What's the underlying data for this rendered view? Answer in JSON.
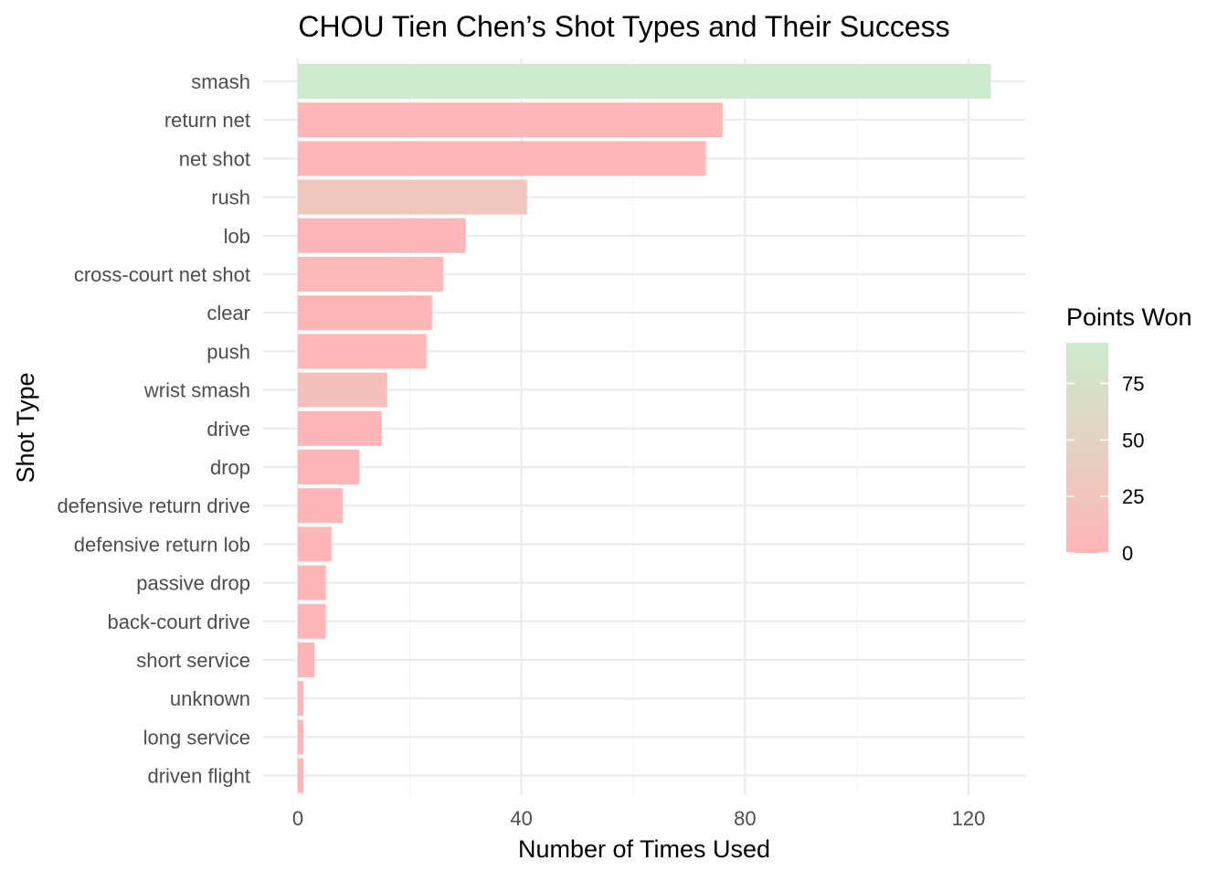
{
  "chart_data": {
    "type": "bar",
    "orientation": "horizontal",
    "title": "CHOU Tien Chen’s Shot Types and Their Success",
    "xlabel": "Number of Times Used",
    "ylabel": "Shot Type",
    "xlim": [
      0,
      130
    ],
    "x_ticks": [
      0,
      40,
      80,
      120
    ],
    "grid": true,
    "categories": [
      "smash",
      "return net",
      "net shot",
      "rush",
      "lob",
      "cross-court net shot",
      "clear",
      "push",
      "wrist smash",
      "drive",
      "drop",
      "defensive return drive",
      "defensive return lob",
      "passive drop",
      "back-court drive",
      "short service",
      "unknown",
      "long service",
      "driven flight"
    ],
    "values": [
      124,
      76,
      73,
      41,
      30,
      26,
      24,
      23,
      16,
      15,
      11,
      8,
      6,
      5,
      5,
      3,
      1,
      1,
      1
    ],
    "fill_values": [
      93,
      0,
      0,
      30,
      0,
      5,
      2,
      3,
      18,
      0,
      0,
      0,
      0,
      0,
      0,
      0,
      0,
      0,
      0
    ],
    "legend": {
      "title": "Points Won",
      "position": "right",
      "ticks": [
        0,
        25,
        50,
        75
      ],
      "range": [
        0,
        93
      ],
      "low_color": "#FFB6B6",
      "high_color": "#CCEBCC"
    }
  }
}
